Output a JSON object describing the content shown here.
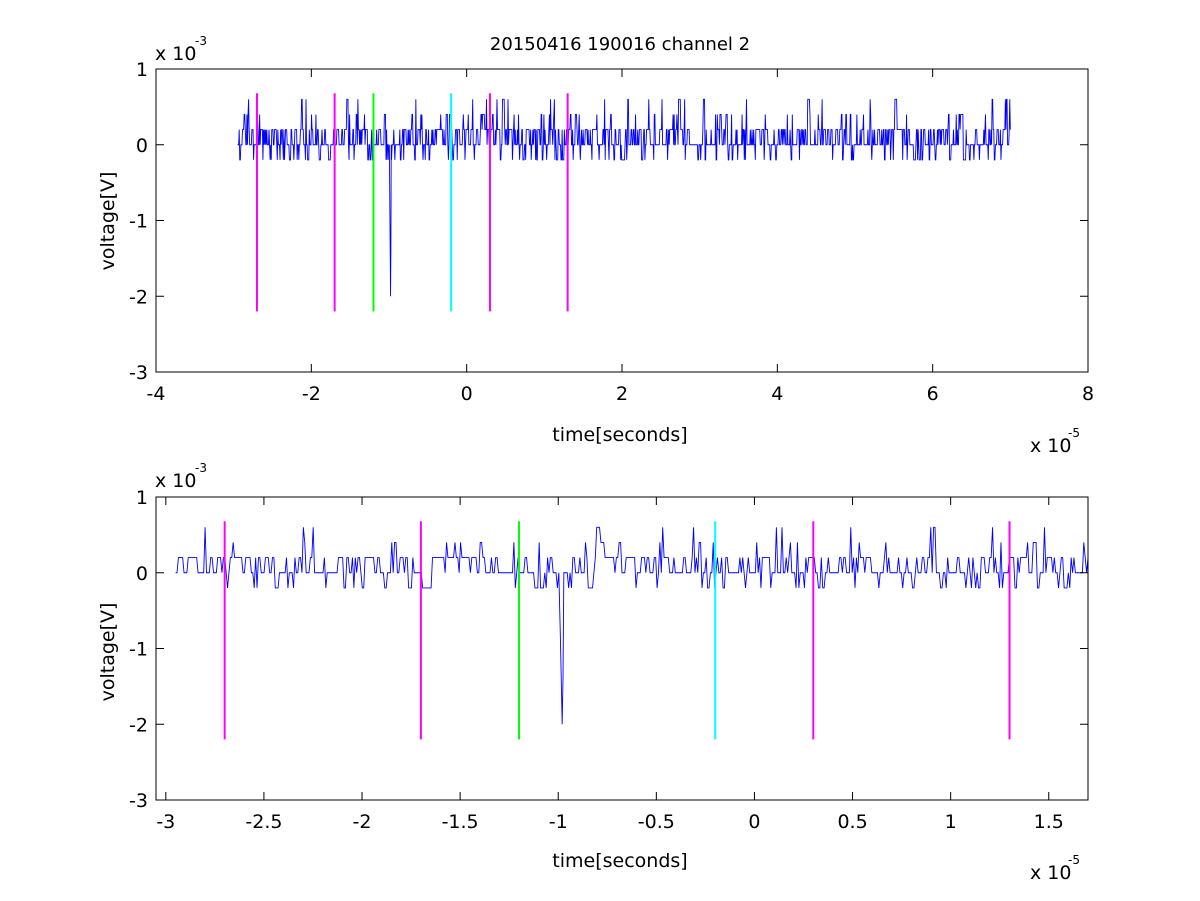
{
  "figure_title": "20150416 190016 channel 2",
  "colors": {
    "signal": "#0000ff",
    "marker_magenta": "#ff00ff",
    "marker_green": "#00ff00",
    "marker_cyan": "#00ffff",
    "axes": "#000000",
    "background": "#ffffff"
  },
  "chart_data": [
    {
      "type": "line",
      "title": "20150416 190016 channel 2",
      "xlabel": "time[seconds]",
      "ylabel": "voltage[V]",
      "x_exponent_label": "x 10",
      "x_exponent": "-5",
      "y_exponent_label": "x 10",
      "y_exponent": "-3",
      "xlim": [
        -4,
        8
      ],
      "ylim": [
        -3,
        1
      ],
      "xticks": [
        -4,
        -2,
        0,
        2,
        4,
        6,
        8
      ],
      "xtick_labels": [
        "-4",
        "-2",
        "0",
        "2",
        "4",
        "6",
        "8"
      ],
      "yticks": [
        -3,
        -2,
        -1,
        0,
        1
      ],
      "ytick_labels": [
        "-3",
        "-2",
        "-1",
        "0",
        "1"
      ],
      "grid": false,
      "series": [
        {
          "kind": "noise_trace",
          "x_range": [
            -2.95,
            7.0
          ],
          "baseline": 0.0,
          "levels": [
            0.2,
            0.4,
            0.6,
            -0.2
          ],
          "spike": {
            "x": -0.98,
            "y": -2.0
          }
        }
      ],
      "markers": [
        {
          "x": -2.7,
          "y_range": [
            -2.2,
            0.68
          ],
          "color": "magenta"
        },
        {
          "x": -1.7,
          "y_range": [
            -2.2,
            0.68
          ],
          "color": "magenta"
        },
        {
          "x": -1.2,
          "y_range": [
            -2.2,
            0.68
          ],
          "color": "green"
        },
        {
          "x": -0.2,
          "y_range": [
            -2.2,
            0.68
          ],
          "color": "cyan"
        },
        {
          "x": 0.3,
          "y_range": [
            -2.2,
            0.68
          ],
          "color": "magenta"
        },
        {
          "x": 1.3,
          "y_range": [
            -2.2,
            0.68
          ],
          "color": "magenta"
        }
      ]
    },
    {
      "type": "line",
      "title": "",
      "xlabel": "time[seconds]",
      "ylabel": "voltage[V]",
      "x_exponent_label": "x 10",
      "x_exponent": "-5",
      "y_exponent_label": "x 10",
      "y_exponent": "-3",
      "xlim": [
        -3.05,
        1.7
      ],
      "ylim": [
        -3,
        1
      ],
      "xticks": [
        -3,
        -2.5,
        -2,
        -1.5,
        -1,
        -0.5,
        0,
        0.5,
        1,
        1.5
      ],
      "xtick_labels": [
        "-3",
        "-2.5",
        "-2",
        "-1.5",
        "-1",
        "-0.5",
        "0",
        "0.5",
        "1",
        "1.5"
      ],
      "yticks": [
        -3,
        -2,
        -1,
        0,
        1
      ],
      "ytick_labels": [
        "-3",
        "-2",
        "-1",
        "0",
        "1"
      ],
      "grid": false,
      "series": [
        {
          "kind": "noise_trace",
          "x_range": [
            -2.95,
            1.7
          ],
          "baseline": 0.0,
          "levels": [
            0.2,
            0.4,
            0.6,
            -0.2
          ],
          "spike": {
            "x": -0.98,
            "y": -2.0
          }
        }
      ],
      "markers": [
        {
          "x": -2.7,
          "y_range": [
            -2.2,
            0.68
          ],
          "color": "magenta"
        },
        {
          "x": -1.7,
          "y_range": [
            -2.2,
            0.68
          ],
          "color": "magenta"
        },
        {
          "x": -1.2,
          "y_range": [
            -2.2,
            0.68
          ],
          "color": "green"
        },
        {
          "x": -0.2,
          "y_range": [
            -2.2,
            0.68
          ],
          "color": "cyan"
        },
        {
          "x": 0.3,
          "y_range": [
            -2.2,
            0.68
          ],
          "color": "magenta"
        },
        {
          "x": 1.3,
          "y_range": [
            -2.2,
            0.68
          ],
          "color": "magenta"
        }
      ]
    }
  ]
}
